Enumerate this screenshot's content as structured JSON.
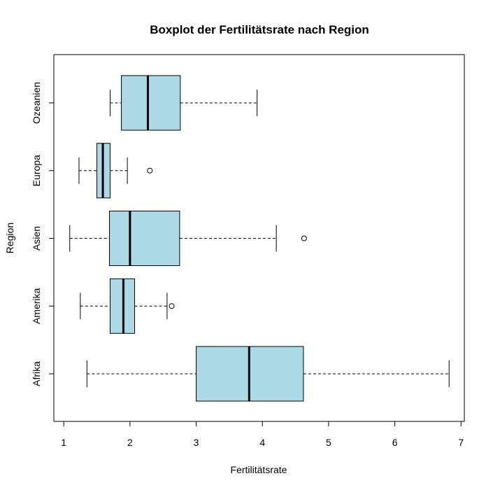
{
  "chart_data": {
    "type": "boxplot",
    "orientation": "horizontal",
    "title": "Boxplot der Fertilitätsrate nach Region",
    "xlabel": "Fertilitätsrate",
    "ylabel": "Region",
    "xlim": [
      0.85,
      7.05
    ],
    "x_ticks": [
      1,
      2,
      3,
      4,
      5,
      6,
      7
    ],
    "box_color": "#add8e6",
    "categories": [
      "Afrika",
      "Amerika",
      "Asien",
      "Europa",
      "Ozeanien"
    ],
    "boxes": [
      {
        "label": "Afrika",
        "whisker_low": 1.35,
        "q1": 3.0,
        "median": 3.8,
        "q3": 4.62,
        "whisker_high": 6.82,
        "outliers": []
      },
      {
        "label": "Amerika",
        "whisker_low": 1.25,
        "q1": 1.7,
        "median": 1.9,
        "q3": 2.07,
        "whisker_high": 2.56,
        "outliers": [
          2.63
        ]
      },
      {
        "label": "Asien",
        "whisker_low": 1.09,
        "q1": 1.69,
        "median": 2.0,
        "q3": 2.75,
        "whisker_high": 4.21,
        "outliers": [
          4.63
        ]
      },
      {
        "label": "Europa",
        "whisker_low": 1.23,
        "q1": 1.5,
        "median": 1.59,
        "q3": 1.7,
        "whisker_high": 1.96,
        "outliers": [
          2.3
        ]
      },
      {
        "label": "Ozeanien",
        "whisker_low": 1.7,
        "q1": 1.87,
        "median": 2.27,
        "q3": 2.76,
        "whisker_high": 3.92,
        "outliers": []
      }
    ]
  }
}
